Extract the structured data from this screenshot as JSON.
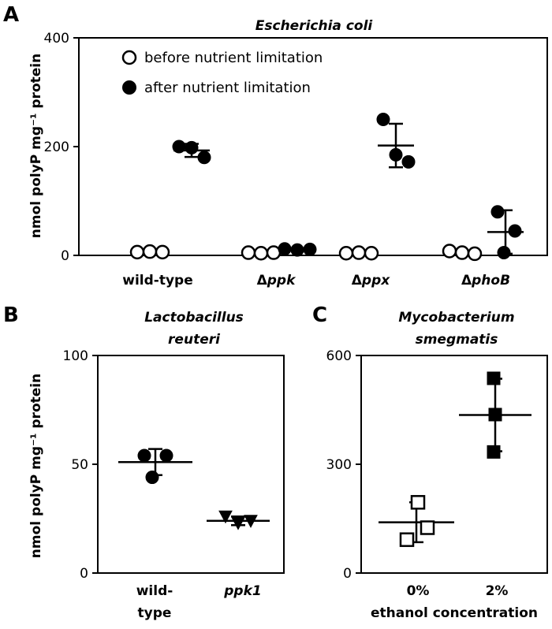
{
  "chart_data": [
    {
      "panel": "A",
      "type": "scatter",
      "title": "Escherichia coli",
      "ylabel": "nmol polyP mg⁻¹ protein",
      "ylim": [
        0,
        400
      ],
      "yticks": [
        0,
        200,
        400
      ],
      "categories": [
        {
          "prefix": "",
          "name": "wild-type",
          "italic": false
        },
        {
          "prefix": "Δ",
          "name": "ppk",
          "italic": true
        },
        {
          "prefix": "Δ",
          "name": "ppx",
          "italic": true
        },
        {
          "prefix": "Δ",
          "name": "phoB",
          "italic": true
        }
      ],
      "legend": [
        {
          "label": "before nutrient limitation",
          "marker": "circle-open"
        },
        {
          "label": "after nutrient limitation",
          "marker": "circle-filled"
        }
      ],
      "series": [
        {
          "name": "before nutrient limitation",
          "marker": "circle-open",
          "points": [
            [
              6,
              7,
              6
            ],
            [
              5,
              4,
              5
            ],
            [
              4,
              5,
              4
            ],
            [
              8,
              5,
              3
            ]
          ],
          "mean": [
            6,
            5,
            4,
            5
          ],
          "err": [
            2,
            1,
            1,
            3
          ]
        },
        {
          "name": "after nutrient limitation",
          "marker": "circle-filled",
          "points": [
            [
              200,
              198,
              180
            ],
            [
              12,
              10,
              11
            ],
            [
              250,
              185,
              172
            ],
            [
              80,
              45,
              5
            ]
          ],
          "mean": [
            193,
            11,
            202,
            43
          ],
          "err": [
            12,
            2,
            40,
            40
          ]
        }
      ]
    },
    {
      "panel": "B",
      "type": "scatter",
      "title_lines": [
        "Lactobacillus",
        "reuteri"
      ],
      "ylabel": "nmol polyP mg⁻¹ protein",
      "ylim": [
        0,
        100
      ],
      "yticks": [
        0,
        50,
        100
      ],
      "categories": [
        {
          "lines": [
            "wild-",
            "type"
          ],
          "italic": false,
          "marker": "circle-filled",
          "points": [
            54,
            54,
            44
          ],
          "mean": 51,
          "err": 6
        },
        {
          "lines": [
            "ppk1"
          ],
          "italic": true,
          "marker": "triangle-down-filled",
          "points": [
            26,
            23,
            24
          ],
          "mean": 24,
          "err": 2
        }
      ]
    },
    {
      "panel": "C",
      "type": "scatter",
      "title_lines": [
        "Mycobacterium",
        "smegmatis"
      ],
      "ylim": [
        0,
        600
      ],
      "yticks": [
        0,
        300,
        600
      ],
      "xlabel": "ethanol concentration",
      "categories": [
        {
          "label": "0%",
          "marker": "square-open",
          "points": [
            195,
            92,
            125
          ],
          "mean": 140,
          "err": 55
        },
        {
          "label": "2%",
          "marker": "square-filled",
          "points": [
            537,
            437,
            334
          ],
          "mean": 436,
          "err": 100
        }
      ]
    }
  ]
}
